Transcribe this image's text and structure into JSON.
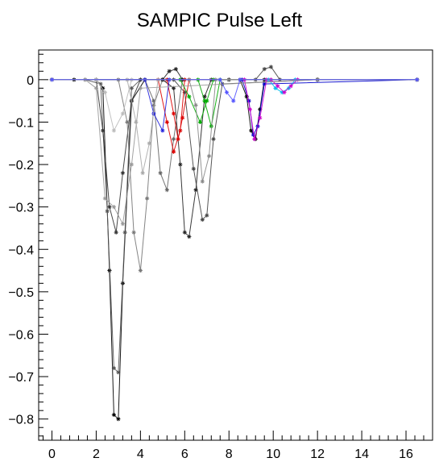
{
  "chart_data": {
    "type": "line",
    "title": "SAMPIC Pulse Left",
    "xlabel": "",
    "ylabel": "",
    "xlim": [
      -0.6,
      17.2
    ],
    "ylim": [
      -0.85,
      0.07
    ],
    "x_ticks": [
      "0",
      "2",
      "4",
      "6",
      "8",
      "10",
      "12",
      "14",
      "16"
    ],
    "y_ticks": [
      "0",
      "−0.1",
      "−0.2",
      "−0.3",
      "−0.4",
      "−0.5",
      "−0.6",
      "−0.7",
      "−0.8"
    ],
    "x_tick_values": [
      0,
      2,
      4,
      6,
      8,
      10,
      12,
      14,
      16
    ],
    "y_tick_values": [
      0,
      -0.1,
      -0.2,
      -0.3,
      -0.4,
      -0.5,
      -0.6,
      -0.7,
      -0.8
    ],
    "grid": false,
    "legend": "none",
    "series": [
      {
        "color": "#000000",
        "x": [
          0.0,
          1.0,
          2.0,
          2.3,
          2.6,
          2.8,
          3.0,
          3.2,
          3.6,
          4.2,
          5.0,
          8.0,
          12.0,
          16.5
        ],
        "y": [
          0,
          0,
          0,
          -0.02,
          -0.45,
          -0.79,
          -0.8,
          -0.48,
          -0.05,
          0.0,
          0,
          0,
          0,
          0
        ]
      },
      {
        "color": "#555555",
        "x": [
          0.0,
          1.5,
          2.2,
          2.5,
          2.8,
          3.0,
          3.3,
          3.6,
          4.0,
          8.0,
          12.0,
          16.5
        ],
        "y": [
          0,
          0,
          -0.01,
          -0.31,
          -0.68,
          -0.69,
          -0.36,
          -0.02,
          0.0,
          0,
          0,
          0
        ]
      },
      {
        "color": "#333333",
        "x": [
          0.0,
          2.0,
          2.3,
          2.6,
          2.9,
          3.2,
          3.6,
          4.0,
          12.0,
          16.5
        ],
        "y": [
          0,
          0,
          -0.12,
          -0.3,
          -0.36,
          -0.22,
          -0.05,
          0,
          0,
          0
        ]
      },
      {
        "color": "#777777",
        "x": [
          0.0,
          3.0,
          3.4,
          3.7,
          4.0,
          4.3,
          4.6,
          5.0,
          12.0,
          16.5
        ],
        "y": [
          0,
          0,
          -0.1,
          -0.36,
          -0.45,
          -0.28,
          -0.06,
          0,
          0,
          0
        ]
      },
      {
        "color": "#222222",
        "x": [
          0.0,
          5.0,
          5.5,
          5.8,
          6.0,
          6.2,
          6.5,
          6.9,
          7.2,
          12.0,
          16.5
        ],
        "y": [
          0,
          0,
          -0.02,
          -0.2,
          -0.36,
          -0.37,
          -0.26,
          -0.04,
          0.0,
          0,
          0
        ]
      },
      {
        "color": "#444444",
        "x": [
          0.0,
          5.5,
          6.0,
          6.4,
          6.8,
          7.0,
          7.3,
          7.7,
          12.0,
          16.5
        ],
        "y": [
          0,
          0,
          -0.03,
          -0.21,
          -0.33,
          -0.32,
          -0.14,
          -0.01,
          0,
          0
        ]
      },
      {
        "color": "#666666",
        "x": [
          0.0,
          4.2,
          4.6,
          4.9,
          5.2,
          5.5,
          5.9,
          12.0,
          16.5
        ],
        "y": [
          0,
          0,
          -0.05,
          -0.22,
          -0.26,
          -0.14,
          0.0,
          0,
          0
        ]
      },
      {
        "color": "#000000",
        "x": [
          0.0,
          8.5,
          8.8,
          9.0,
          9.2,
          9.4,
          9.6,
          12.0,
          16.5
        ],
        "y": [
          0,
          0,
          -0.04,
          -0.12,
          -0.14,
          -0.07,
          0.0,
          0,
          0
        ]
      },
      {
        "color": "#0000cc",
        "x": [
          0.0,
          8.6,
          8.9,
          9.1,
          9.3,
          9.6,
          16.5
        ],
        "y": [
          0,
          0,
          -0.05,
          -0.13,
          -0.11,
          -0.01,
          0
        ]
      },
      {
        "color": "#cc00cc",
        "x": [
          0.0,
          8.7,
          8.95,
          9.15,
          9.4,
          9.7,
          16.5
        ],
        "y": [
          0,
          0,
          -0.07,
          -0.14,
          -0.09,
          0.0,
          0
        ]
      },
      {
        "color": "#00bbee",
        "x": [
          0.0,
          9.8,
          10.1,
          10.4,
          10.7,
          11.0,
          16.5
        ],
        "y": [
          0,
          0,
          -0.02,
          -0.03,
          -0.02,
          0.0,
          0
        ]
      },
      {
        "color": "#cc00cc",
        "x": [
          0.0,
          9.9,
          10.2,
          10.5,
          10.8,
          11.1,
          16.5
        ],
        "y": [
          0,
          0,
          -0.015,
          -0.03,
          -0.015,
          0.0,
          0
        ]
      },
      {
        "color": "#dd0000",
        "x": [
          0.0,
          4.8,
          5.2,
          5.5,
          5.8,
          6.0,
          16.5
        ],
        "y": [
          0,
          0,
          -0.1,
          -0.17,
          -0.12,
          0.0,
          0
        ]
      },
      {
        "color": "#dd0000",
        "x": [
          0.0,
          5.2,
          5.5,
          5.7,
          5.9,
          6.2,
          16.5
        ],
        "y": [
          0,
          0,
          -0.08,
          -0.14,
          -0.09,
          0.0,
          0
        ]
      },
      {
        "color": "#00aa00",
        "x": [
          0.0,
          5.8,
          6.2,
          6.7,
          7.0,
          7.3,
          16.5
        ],
        "y": [
          0,
          0,
          -0.04,
          -0.1,
          -0.05,
          0.0,
          0
        ]
      },
      {
        "color": "#00aa00",
        "x": [
          0.0,
          6.6,
          6.9,
          7.2,
          7.6,
          16.5
        ],
        "y": [
          0,
          0,
          -0.05,
          -0.11,
          0.0,
          0
        ]
      },
      {
        "color": "#2222dd",
        "x": [
          0.0,
          4.2,
          4.6,
          5.0,
          5.3,
          16.5
        ],
        "y": [
          0,
          0,
          -0.08,
          -0.12,
          0.0,
          0
        ]
      },
      {
        "color": "#222222",
        "x": [
          0.0,
          5.0,
          5.3,
          5.6,
          5.9,
          16.5
        ],
        "y": [
          0,
          0,
          0.02,
          0.025,
          0.0,
          0
        ]
      },
      {
        "color": "#444444",
        "x": [
          0.0,
          9.2,
          9.6,
          9.9,
          10.3,
          16.5
        ],
        "y": [
          0,
          0,
          0.025,
          0.03,
          0.0,
          0
        ]
      },
      {
        "color": "#999999",
        "x": [
          0.0,
          1.5,
          2.0,
          2.4,
          2.8,
          3.2,
          3.6,
          4.0,
          12.0,
          16.5
        ],
        "y": [
          0,
          0,
          -0.02,
          -0.28,
          -0.3,
          -0.34,
          -0.2,
          -0.02,
          0,
          0
        ]
      },
      {
        "color": "#aaaaaa",
        "x": [
          0.0,
          3.4,
          3.8,
          4.1,
          4.4,
          4.8,
          16.5
        ],
        "y": [
          0,
          0,
          -0.1,
          -0.22,
          -0.15,
          0.0,
          0
        ]
      },
      {
        "color": "#bbbbbb",
        "x": [
          0.0,
          2.0,
          2.4,
          2.8,
          3.2,
          3.6,
          16.5
        ],
        "y": [
          0,
          0,
          -0.03,
          -0.12,
          -0.08,
          0.0,
          0
        ]
      },
      {
        "color": "#888888",
        "x": [
          0.0,
          6.2,
          6.5,
          6.8,
          7.1,
          7.4,
          16.5
        ],
        "y": [
          0,
          0,
          -0.06,
          -0.24,
          -0.18,
          0.0,
          0
        ]
      },
      {
        "color": "#5555ff",
        "x": [
          0.0,
          7.6,
          7.9,
          8.2,
          8.5,
          16.5
        ],
        "y": [
          0,
          0,
          -0.03,
          -0.05,
          0.0,
          0
        ]
      }
    ]
  }
}
